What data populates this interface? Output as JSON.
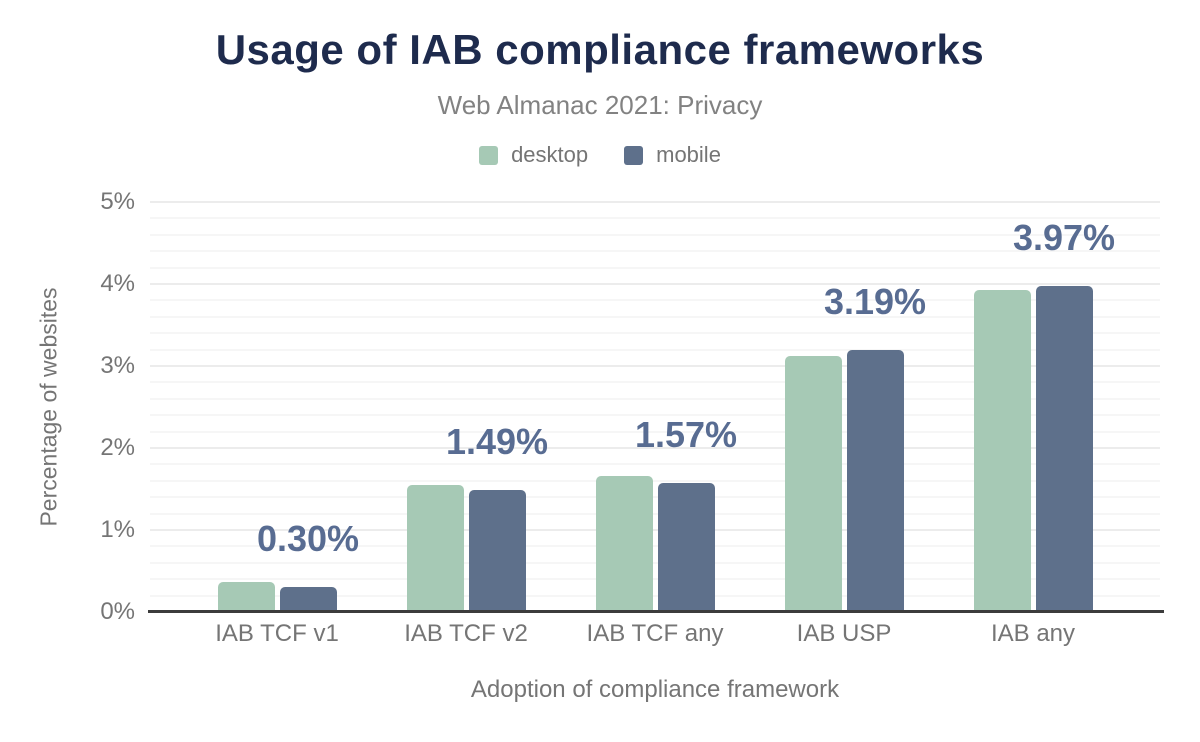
{
  "title": "Usage of IAB compliance frameworks",
  "subtitle": "Web Almanac 2021: Privacy",
  "legend": [
    {
      "label": "desktop",
      "color": "#a6c9b5"
    },
    {
      "label": "mobile",
      "color": "#5e708b"
    }
  ],
  "colors": {
    "title_text": "#1e2b4d",
    "subtitle_text": "#828282",
    "axis_text": "#757575",
    "value_label_text": "#586c92",
    "desktop_bar": "#a6c9b5",
    "mobile_bar": "#5e708b",
    "baseline": "#3c3c3c",
    "gridline_major": "#ececec",
    "gridline_minor": "#f6f6f6",
    "background": "#ffffff"
  },
  "chart_data": {
    "type": "bar",
    "title": "Usage of IAB compliance frameworks",
    "subtitle": "Web Almanac 2021: Privacy",
    "categories": [
      "IAB TCF v1",
      "IAB TCF v2",
      "IAB TCF any",
      "IAB USP",
      "IAB any"
    ],
    "series": [
      {
        "name": "desktop",
        "color": "#a6c9b5",
        "values": [
          0.36,
          1.55,
          1.66,
          3.12,
          3.93
        ]
      },
      {
        "name": "mobile",
        "color": "#5e708b",
        "values": [
          0.3,
          1.49,
          1.57,
          3.19,
          3.97
        ]
      }
    ],
    "value_labels": [
      "0.30%",
      "1.49%",
      "1.57%",
      "3.19%",
      "3.97%"
    ],
    "value_labels_refer_to": "mobile",
    "xlabel": "Adoption of compliance framework",
    "ylabel": "Percentage of websites",
    "ylim": [
      0,
      5
    ],
    "y_ticks": [
      "0%",
      "1%",
      "2%",
      "3%",
      "4%",
      "5%"
    ],
    "grid": {
      "horizontal": true,
      "major_step_pct": 1.0,
      "minor_step_pct": 0.2
    },
    "legend_position": "top-center",
    "bar_corner": "rounded-top"
  }
}
